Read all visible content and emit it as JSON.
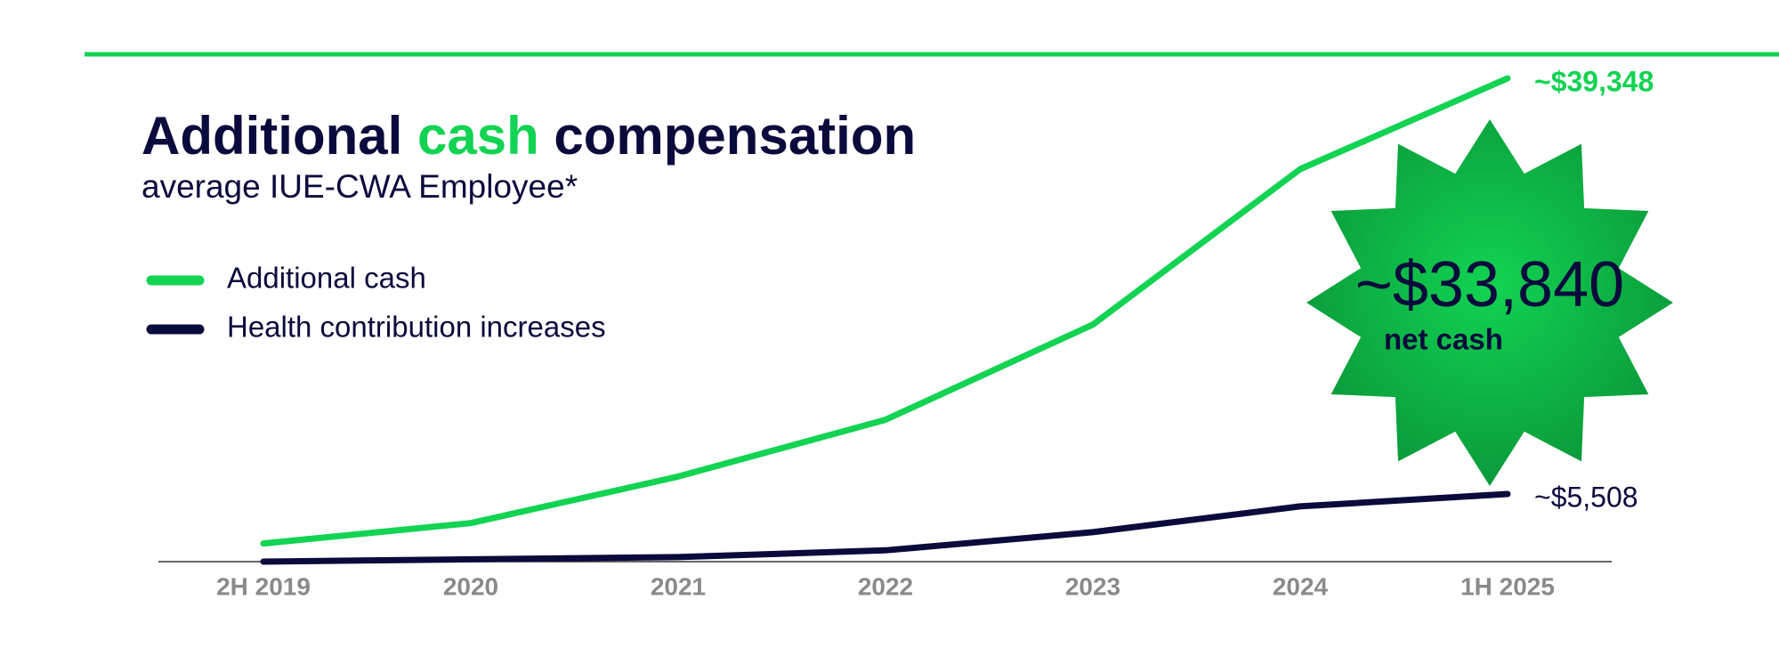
{
  "chart_data": {
    "type": "line",
    "title_parts": [
      "Additional",
      "cash",
      "compensation"
    ],
    "subtitle": "average IUE-CWA Employee*",
    "categories": [
      "2H 2019",
      "2020",
      "2021",
      "2022",
      "2023",
      "2024",
      "1H 2025"
    ],
    "series": [
      {
        "name": "Additional cash",
        "color": "#12d352",
        "values": [
          1480,
          3140,
          6930,
          11550,
          19300,
          31960,
          39348
        ],
        "value_labels": [
          null,
          null,
          null,
          null,
          null,
          null,
          "~$39,348"
        ]
      },
      {
        "name": "Health contribution increases",
        "color": "#0a0a3c",
        "values": [
          0,
          185,
          370,
          920,
          2400,
          4500,
          5508
        ],
        "value_labels": [
          null,
          null,
          null,
          null,
          null,
          null,
          "~$5,508"
        ]
      }
    ],
    "ylim": [
      0,
      40000
    ],
    "annotation": {
      "text": "~$33,840",
      "subtext": "net cash"
    }
  }
}
